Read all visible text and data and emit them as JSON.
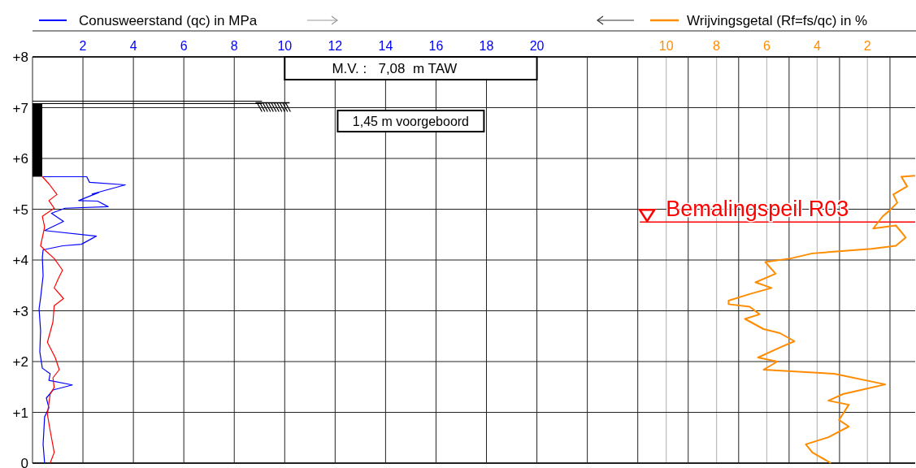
{
  "chart_data": {
    "type": "line",
    "xlim": [
      0,
      35
    ],
    "x2lim": [
      35.2,
      0.1
    ],
    "ylim": [
      0,
      8
    ],
    "xticks": [
      2,
      4,
      6,
      8,
      10,
      12,
      14,
      16,
      18,
      20,
      {
        "value": 22,
        "label": null
      },
      {
        "value": 24,
        "label": null
      },
      {
        "value": 26,
        "label": null
      },
      {
        "value": 28,
        "label": null
      },
      {
        "value": 30,
        "label": null
      },
      {
        "value": 32,
        "label": null
      },
      {
        "value": 34,
        "label": null
      }
    ],
    "x2ticks": [
      10,
      8,
      6,
      4,
      2
    ],
    "yticks": [
      {
        "value": 0,
        "label": "0"
      },
      {
        "value": 1,
        "label": "+1"
      },
      {
        "value": 2,
        "label": "+2"
      },
      {
        "value": 3,
        "label": "+3"
      },
      {
        "value": 4,
        "label": "+4"
      },
      {
        "value": 5,
        "label": "+5"
      },
      {
        "value": 6,
        "label": "+6"
      },
      {
        "value": 7,
        "label": "+7"
      },
      {
        "value": 8,
        "label": "+8"
      }
    ],
    "grid": true,
    "legend": "top",
    "line_style": "solid",
    "marker": "none",
    "series": [
      {
        "name": "Conusweerstand (qc) in MPa",
        "color": "#0000ff",
        "x": [
          0.39,
          2.15,
          2.26,
          3.68,
          2.36,
          2.63,
          1.83,
          2.58,
          3.0,
          1.29,
          0.75,
          1.23,
          0.48,
          2.53,
          1.94,
          1.2,
          0.42,
          0.39,
          0.42,
          0.32,
          0.26,
          0.32,
          0.29,
          0.39,
          0.7,
          0.65,
          1.58,
          0.81,
          0.55,
          0.65,
          0.48,
          0.42,
          0.48
        ],
        "values": [
          5.64,
          5.64,
          5.53,
          5.48,
          5.3,
          5.33,
          5.17,
          5.16,
          5.05,
          5.02,
          4.92,
          4.76,
          4.58,
          4.47,
          4.31,
          4.28,
          4.2,
          4.05,
          3.69,
          3.25,
          3.04,
          2.61,
          2.19,
          1.87,
          1.76,
          1.63,
          1.54,
          1.44,
          1.28,
          1.09,
          0.91,
          0.37,
          0
        ]
      },
      {
        "color": "#ff0000",
        "x": [
          0.39,
          0.65,
          0.97,
          0.65,
          0.86,
          0.39,
          0.48,
          0.32,
          0.48,
          0.86,
          1.19,
          1.03,
          0.86,
          1.23,
          0.86,
          0.81,
          0.59,
          0.9,
          1.06,
          0.81,
          0.86,
          0.7,
          0.59,
          0.7,
          0.86,
          0.7
        ],
        "values": [
          5.64,
          5.5,
          5.29,
          5.17,
          5.02,
          4.86,
          4.65,
          4.28,
          4.2,
          4.03,
          3.8,
          3.64,
          3.45,
          3.24,
          3.1,
          2.78,
          2.38,
          2.08,
          1.84,
          1.68,
          1.49,
          1.36,
          0.96,
          0.64,
          0.21,
          0
        ]
      },
      {
        "name": "Wrijvingsgetal (Rf=fs/qc) in %",
        "color": "#ff8c00",
        "axis": "x2",
        "x": [
          0.1,
          0.65,
          0.42,
          0.97,
          0.81,
          1.13,
          1.39,
          1.77,
          0.87,
          0.55,
          0.48,
          0.87,
          1.84,
          4.19,
          5.06,
          6.06,
          5.65,
          6.45,
          5.81,
          6.68,
          7.52,
          7.52,
          6.68,
          6.29,
          6.87,
          6.13,
          5.48,
          4.9,
          5.42,
          6.35,
          5.58,
          6.13,
          3.32,
          1.29,
          2.26,
          2.97,
          3.55,
          2.74,
          3.13,
          2.74,
          3.55,
          4.45,
          4.19,
          3.45
        ],
        "values": [
          5.66,
          5.64,
          5.45,
          5.29,
          5.13,
          4.97,
          4.86,
          4.62,
          4.68,
          4.49,
          4.44,
          4.28,
          4.22,
          4.13,
          4.03,
          3.96,
          3.73,
          3.56,
          3.45,
          3.33,
          3.2,
          3.13,
          3.08,
          2.93,
          2.84,
          2.64,
          2.56,
          2.4,
          2.29,
          2.08,
          2.0,
          1.84,
          1.76,
          1.55,
          1.44,
          1.36,
          1.23,
          1.15,
          0.85,
          0.72,
          0.51,
          0.37,
          0.21,
          0
        ]
      }
    ],
    "ref_lines": [
      {
        "axis": "y",
        "value": 7.08,
        "color": "#000000"
      },
      {
        "axis": "y",
        "value": 4.75,
        "label": "Bemalingspeil R03",
        "color": "#ff0000"
      }
    ],
    "annotations": [
      "M.V. :   7,08  m TAW",
      "1,45 m voorgeboord"
    ]
  }
}
